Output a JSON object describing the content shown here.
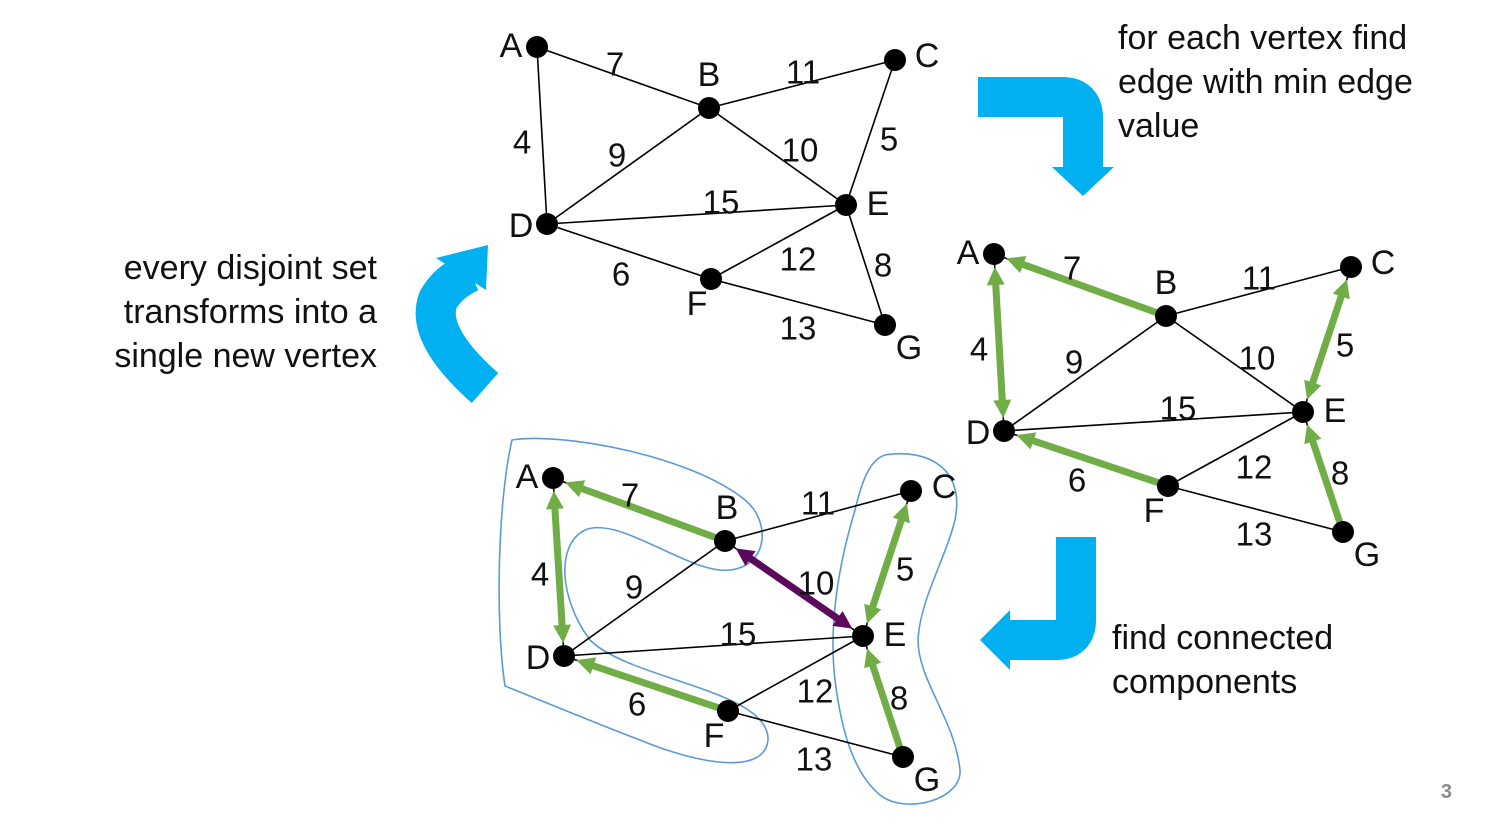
{
  "colors": {
    "edge": "#000000",
    "vertex": "#000000",
    "min_edge_arrow": "#70ad47",
    "merge_arrow": "#5b0a5b",
    "cycle_arrow": "#00b0f0",
    "component_outline": "#5b9bd5",
    "page_number": "#8a8a8a"
  },
  "captions": {
    "top_right": "for each vertex find\nedge with min edge\nvalue",
    "left": "every disjoint set\ntransforms into a\nsingle  new vertex",
    "bottom_right": "find connected\ncomponents"
  },
  "page_number": "3",
  "graph": {
    "vertices": [
      "A",
      "B",
      "C",
      "D",
      "E",
      "F",
      "G"
    ],
    "edges": [
      {
        "from": "A",
        "to": "B",
        "weight": "7"
      },
      {
        "from": "B",
        "to": "C",
        "weight": "11"
      },
      {
        "from": "A",
        "to": "D",
        "weight": "4"
      },
      {
        "from": "B",
        "to": "D",
        "weight": "9"
      },
      {
        "from": "B",
        "to": "E",
        "weight": "10"
      },
      {
        "from": "C",
        "to": "E",
        "weight": "5"
      },
      {
        "from": "D",
        "to": "E",
        "weight": "15"
      },
      {
        "from": "D",
        "to": "F",
        "weight": "6"
      },
      {
        "from": "E",
        "to": "F",
        "weight": "12"
      },
      {
        "from": "E",
        "to": "G",
        "weight": "8"
      },
      {
        "from": "F",
        "to": "G",
        "weight": "13"
      }
    ]
  },
  "step2_min_edges": [
    {
      "from": "A",
      "to": "D",
      "both": true
    },
    {
      "from": "B",
      "to": "A",
      "both": false
    },
    {
      "from": "C",
      "to": "E",
      "both": true
    },
    {
      "from": "F",
      "to": "D",
      "both": false
    },
    {
      "from": "G",
      "to": "E",
      "both": false
    }
  ],
  "step3_min_edges": [
    {
      "from": "A",
      "to": "D",
      "both": true
    },
    {
      "from": "B",
      "to": "A",
      "both": false
    },
    {
      "from": "C",
      "to": "E",
      "both": true
    },
    {
      "from": "F",
      "to": "D",
      "both": false
    },
    {
      "from": "G",
      "to": "E",
      "both": false
    }
  ],
  "step3_merge_edges": [
    {
      "from": "B",
      "to": "E",
      "both": true
    }
  ]
}
